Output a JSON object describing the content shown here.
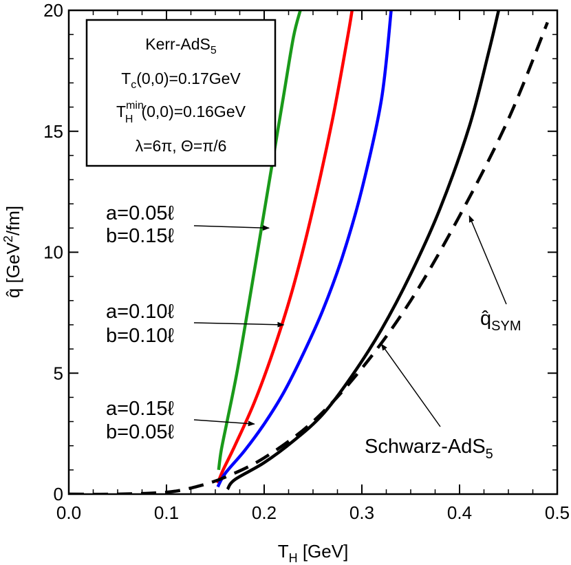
{
  "chart_data": {
    "type": "line",
    "xlabel": "T",
    "xlabel_sub": "H",
    "xlabel_unit": " [GeV]",
    "ylabel": "q̂ [GeV",
    "ylabel_sup": "2",
    "ylabel_rest": "/fm]",
    "xlim": [
      0.0,
      0.5
    ],
    "ylim": [
      0,
      20
    ],
    "x_ticks": [
      "0.0",
      "0.1",
      "0.2",
      "0.3",
      "0.4",
      "0.5"
    ],
    "y_ticks": [
      "0",
      "5",
      "10",
      "15",
      "20"
    ],
    "grid": false,
    "legend_box": {
      "line1": "Kerr-AdS",
      "line1_sub": "5",
      "line2_main": "T",
      "line2_sub": "c",
      "line2_rest": "(0,0)=0.17GeV",
      "line3_main": "T",
      "line3_sup": "min",
      "line3_sub": "H",
      "line3_rest": "(0,0)=0.16GeV",
      "line4": "λ=6π,  Θ=π/6"
    },
    "series": [
      {
        "color": "#1a9a1a",
        "style": "solid",
        "x": [
          0.1534,
          0.156,
          0.162,
          0.172,
          0.184,
          0.196,
          0.208,
          0.22,
          0.23,
          0.237
        ],
        "y": [
          1.0,
          1.8,
          3.0,
          5.0,
          7.8,
          10.7,
          13.6,
          16.5,
          18.9,
          20.0
        ]
      },
      {
        "color": "#ff0000",
        "style": "solid",
        "x": [
          0.1525,
          0.158,
          0.17,
          0.19,
          0.21,
          0.23,
          0.25,
          0.27,
          0.285,
          0.29
        ],
        "y": [
          0.45,
          1.0,
          2.0,
          3.8,
          6.0,
          8.6,
          11.8,
          15.5,
          18.8,
          20.0
        ]
      },
      {
        "color": "#0000ff",
        "style": "solid",
        "x": [
          0.1525,
          0.16,
          0.18,
          0.2,
          0.22,
          0.24,
          0.26,
          0.28,
          0.3,
          0.32,
          0.33
        ],
        "y": [
          0.3,
          0.85,
          1.8,
          2.9,
          4.2,
          5.8,
          7.6,
          9.8,
          12.6,
          16.3,
          20.0
        ]
      },
      {
        "color": "#000000",
        "style": "solid",
        "x": [
          0.1625,
          0.17,
          0.2,
          0.23,
          0.26,
          0.29,
          0.32,
          0.35,
          0.38,
          0.41,
          0.43,
          0.44
        ],
        "y": [
          0.2,
          0.6,
          1.3,
          2.2,
          3.3,
          4.9,
          6.8,
          9.1,
          11.8,
          15.2,
          18.3,
          20.0
        ]
      },
      {
        "color": "#000000",
        "style": "dashed",
        "x": [
          0.0,
          0.05,
          0.1,
          0.13,
          0.16,
          0.2,
          0.25,
          0.3,
          0.35,
          0.4,
          0.45,
          0.49
        ],
        "y": [
          0.0,
          0.0,
          0.08,
          0.3,
          0.7,
          1.5,
          3.0,
          5.2,
          8.0,
          11.5,
          15.5,
          19.5
        ]
      }
    ],
    "annotations": [
      {
        "lines": [
          "a=0.05ℓ",
          "b=0.15ℓ"
        ],
        "arrow_to": [
          0.205,
          11.0
        ]
      },
      {
        "lines": [
          "a=0.10ℓ",
          "b=0.10ℓ"
        ],
        "arrow_to": [
          0.22,
          7.0
        ]
      },
      {
        "lines": [
          "a=0.15ℓ",
          "b=0.05ℓ"
        ],
        "arrow_to": [
          0.19,
          2.9
        ]
      }
    ],
    "label_qsym": {
      "main": "q̂",
      "sub": "SYM",
      "arrow_to": [
        0.41,
        11.5
      ]
    },
    "label_schwarz": {
      "main": "Schwarz-AdS",
      "sub": "5",
      "arrow_to": [
        0.32,
        6.2
      ]
    }
  }
}
